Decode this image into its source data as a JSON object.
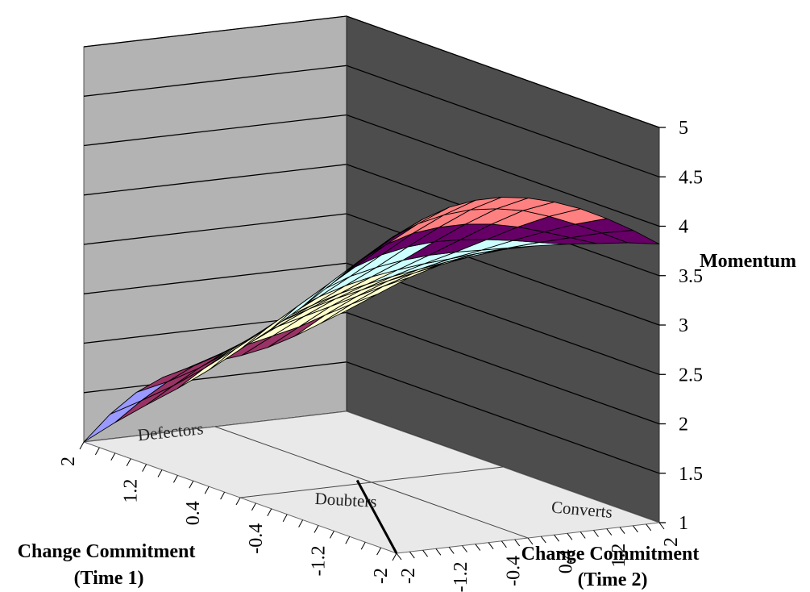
{
  "chart_data": {
    "type": "surface",
    "title": "",
    "x_axis": {
      "label": "Change Commitment (Time 1)",
      "label_lines": [
        "Change Commitment",
        "(Time 1)"
      ],
      "ticks": [
        "2",
        "1.2",
        "0.4",
        "-0.4",
        "-1.2",
        "-2"
      ],
      "range": [
        -2,
        2
      ]
    },
    "y_axis": {
      "label": "Change Commitment (Time 2)",
      "label_lines": [
        "Change Commitment",
        "(Time 2)"
      ],
      "ticks": [
        "-2",
        "-1.2",
        "-0.4",
        "0.4",
        "1.2",
        "2"
      ],
      "range": [
        -2,
        2
      ]
    },
    "z_axis": {
      "label": "Momentum",
      "ticks": [
        "1",
        "1.5",
        "2",
        "2.5",
        "3",
        "3.5",
        "4",
        "4.5",
        "5"
      ],
      "range": [
        1,
        5
      ]
    },
    "floor_regions": [
      "Defectors",
      "Converts",
      "Doubters"
    ],
    "grid": true,
    "band_colors": [
      {
        "range": [
          1.0,
          1.5
        ],
        "color": "#9999ff"
      },
      {
        "range": [
          1.5,
          2.0
        ],
        "color": "#993366"
      },
      {
        "range": [
          2.0,
          2.5
        ],
        "color": "#ffffcc"
      },
      {
        "range": [
          2.5,
          3.0
        ],
        "color": "#ffffcc"
      },
      {
        "range": [
          3.0,
          3.5
        ],
        "color": "#ccffff"
      },
      {
        "range": [
          3.5,
          4.0
        ],
        "color": "#660066"
      },
      {
        "range": [
          4.0,
          4.5
        ],
        "color": "#ff8080"
      }
    ],
    "x_values": [
      2,
      1.6,
      1.2,
      0.8,
      0.4,
      0,
      -0.4,
      -0.8,
      -1.2,
      -1.6,
      -2
    ],
    "y_values": [
      -2,
      -1.6,
      -1.2,
      -0.8,
      -0.4,
      0,
      0.4,
      0.8,
      1.2,
      1.6,
      2
    ],
    "z_values": [
      [
        1.0,
        1.25,
        1.44,
        1.56,
        1.63,
        1.66,
        1.69,
        1.74,
        1.82,
        1.92,
        2.02
      ],
      [
        1.31,
        1.5,
        1.66,
        1.79,
        1.88,
        1.94,
        2.0,
        2.06,
        2.15,
        2.23,
        2.3
      ],
      [
        1.6,
        1.76,
        1.91,
        2.04,
        2.15,
        2.24,
        2.31,
        2.38,
        2.45,
        2.52,
        2.58
      ],
      [
        1.88,
        2.05,
        2.2,
        2.33,
        2.44,
        2.53,
        2.6,
        2.66,
        2.72,
        2.77,
        2.82
      ],
      [
        2.18,
        2.36,
        2.51,
        2.63,
        2.72,
        2.8,
        2.86,
        2.91,
        2.95,
        2.99,
        3.02
      ],
      [
        2.5,
        2.68,
        2.83,
        2.94,
        3.02,
        3.08,
        3.12,
        3.15,
        3.17,
        3.19,
        3.2
      ],
      [
        2.82,
        3.02,
        3.16,
        3.26,
        3.32,
        3.36,
        3.38,
        3.38,
        3.37,
        3.36,
        3.35
      ],
      [
        3.16,
        3.36,
        3.5,
        3.59,
        3.64,
        3.66,
        3.65,
        3.62,
        3.58,
        3.53,
        3.48
      ],
      [
        3.52,
        3.71,
        3.84,
        3.92,
        3.95,
        3.95,
        3.92,
        3.86,
        3.78,
        3.69,
        3.6
      ],
      [
        3.88,
        4.05,
        4.16,
        4.22,
        4.24,
        4.22,
        4.17,
        4.08,
        3.97,
        3.85,
        3.72
      ],
      [
        4.22,
        4.35,
        4.44,
        4.48,
        4.48,
        4.44,
        4.37,
        4.27,
        4.14,
        3.99,
        3.82
      ]
    ]
  }
}
